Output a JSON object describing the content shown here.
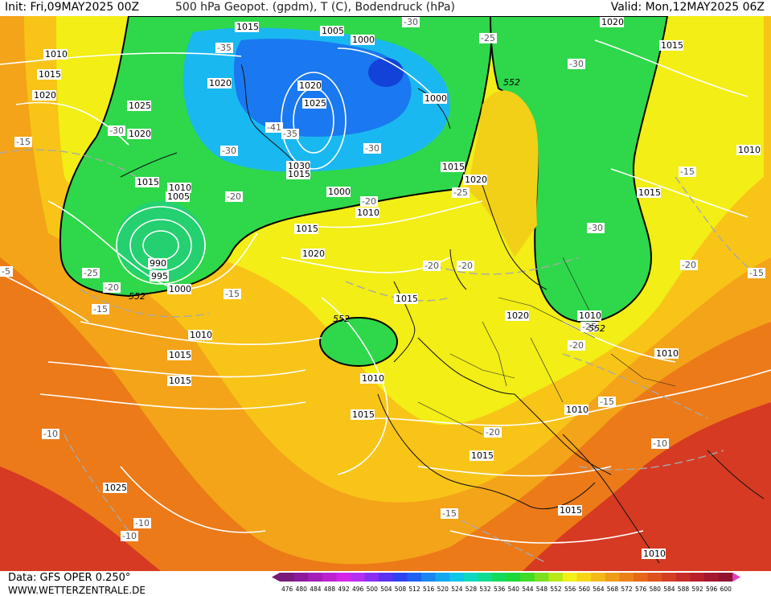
{
  "header": {
    "init": "Init: Fri,09MAY2025 00Z",
    "title": "500 hPa Geopot. (gpdm), T (C), Bodendruck (hPa)",
    "valid": "Valid: Mon,12MAY2025 06Z"
  },
  "footer": {
    "data_source": "Data: GFS OPER 0.250°",
    "site": "WWW.WETTERZENTRALE.DE"
  },
  "colorbar": {
    "values": [
      "476",
      "480",
      "484",
      "488",
      "492",
      "496",
      "500",
      "504",
      "508",
      "512",
      "516",
      "520",
      "524",
      "528",
      "532",
      "536",
      "540",
      "544",
      "548",
      "552",
      "556",
      "560",
      "564",
      "568",
      "572",
      "576",
      "580",
      "584",
      "588",
      "592",
      "596",
      "600"
    ],
    "colors": [
      "#7a1a7a",
      "#8c1b9c",
      "#a21fb8",
      "#bb22d0",
      "#d326e6",
      "#b52ff0",
      "#8a2ef0",
      "#5a32f0",
      "#2f42f0",
      "#1f62f0",
      "#1a86f0",
      "#12a8f0",
      "#10c6e8",
      "#10d8c0",
      "#10dc90",
      "#14da5c",
      "#1ed83a",
      "#40dc28",
      "#7ae020",
      "#b8e818",
      "#f2f016",
      "#f8d418",
      "#f4b818",
      "#f09c18",
      "#ec8018",
      "#e66818",
      "#de5220",
      "#d43e24",
      "#c82c28",
      "#b81e2c",
      "#a4162e",
      "#921230",
      "#e040c0"
    ]
  },
  "map": {
    "isobar_labels": [
      "1010",
      "1015",
      "1020",
      "1025",
      "1015",
      "1005",
      "1000",
      "1020",
      "1025",
      "1020",
      "1000",
      "1030",
      "1015",
      "1020",
      "1015",
      "1010",
      "1005",
      "1000",
      "1015",
      "990",
      "995",
      "1000",
      "1010",
      "1015",
      "1020",
      "1025",
      "1015",
      "1010",
      "1015",
      "1020",
      "1015",
      "1010",
      "1015",
      "1010",
      "1015",
      "1010",
      "1020",
      "1010",
      "1015",
      "1015",
      "1020",
      "1010",
      "1015",
      "1010"
    ],
    "temperature_labels": [
      "-15",
      "-30",
      "-25",
      "-20",
      "-15",
      "-25",
      "-30",
      "-35",
      "-41",
      "-35",
      "-30",
      "-30",
      "-25",
      "-20",
      "-20",
      "-20",
      "-20",
      "-30",
      "-30",
      "-25",
      "-20",
      "-15",
      "-15",
      "-20",
      "-15",
      "-10",
      "-10",
      "-10",
      "-10",
      "-15",
      "-15",
      "-20",
      "-5"
    ],
    "height_labels": [
      "552",
      "552",
      "552",
      "552"
    ]
  }
}
